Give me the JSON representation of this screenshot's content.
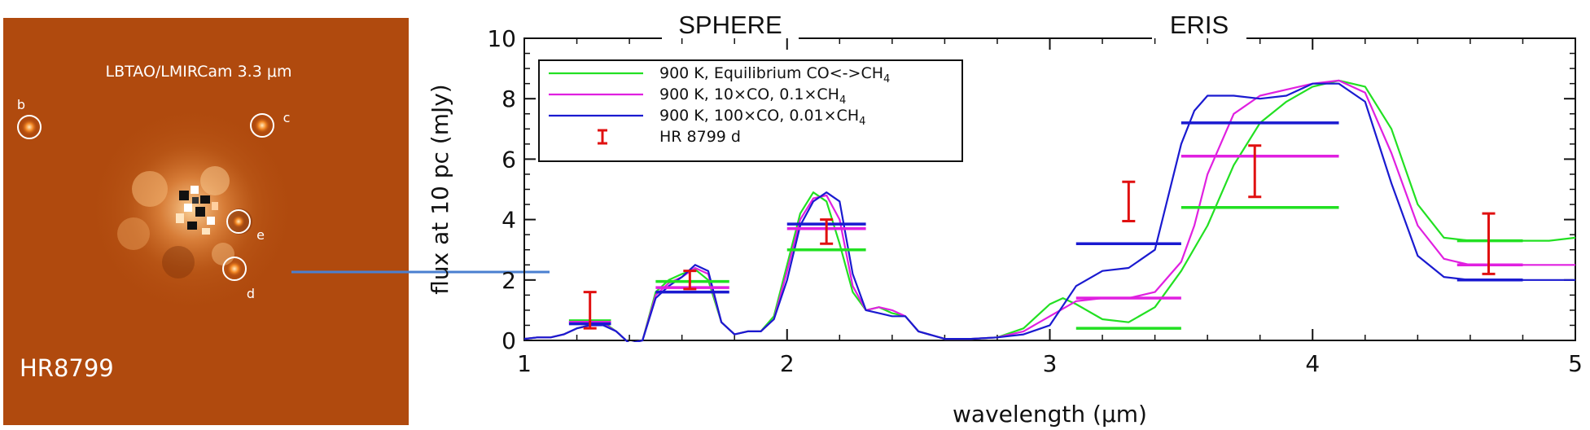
{
  "image_panel": {
    "instrument_label": "LBTAO/LMIRCam 3.3 μm",
    "target_label": "HR8799",
    "planets": [
      {
        "label": "b"
      },
      {
        "label": "c"
      },
      {
        "label": "e"
      },
      {
        "label": "d"
      }
    ],
    "background_color": "#b04a0e",
    "planet_color": "#f07a1a",
    "connector_color": "#4a7fd0"
  },
  "chart_data": {
    "type": "line",
    "band_labels": [
      "SPHERE",
      "ERIS"
    ],
    "xlabel": "wavelength (μm)",
    "ylabel": "flux at 10 pc (mJy)",
    "xlim": [
      1,
      5
    ],
    "ylim": [
      0,
      10
    ],
    "xticks": [
      "1",
      "2",
      "3",
      "4",
      "5"
    ],
    "yticks": [
      "0",
      "2",
      "4",
      "6",
      "8",
      "10"
    ],
    "series": [
      {
        "name_main": "900 K, Equilibrium CO<->CH",
        "name_sub": "4",
        "color": "#22e022",
        "x": [
          1.0,
          1.05,
          1.1,
          1.15,
          1.2,
          1.25,
          1.3,
          1.35,
          1.4,
          1.45,
          1.5,
          1.55,
          1.6,
          1.65,
          1.7,
          1.75,
          1.8,
          1.85,
          1.9,
          1.95,
          2.0,
          2.05,
          2.1,
          2.15,
          2.2,
          2.25,
          2.3,
          2.35,
          2.4,
          2.45,
          2.5,
          2.6,
          2.7,
          2.8,
          2.9,
          3.0,
          3.05,
          3.1,
          3.2,
          3.3,
          3.4,
          3.5,
          3.6,
          3.7,
          3.8,
          3.9,
          4.0,
          4.1,
          4.2,
          4.3,
          4.4,
          4.5,
          4.6,
          4.7,
          4.8,
          4.9,
          5.0
        ],
        "y": [
          0.05,
          0.1,
          0.1,
          0.2,
          0.4,
          0.5,
          0.6,
          0.3,
          -0.1,
          0.0,
          1.6,
          2.0,
          2.2,
          2.35,
          2.0,
          0.6,
          0.2,
          0.3,
          0.3,
          0.8,
          2.5,
          4.2,
          4.9,
          4.6,
          3.2,
          1.6,
          1.0,
          1.1,
          0.9,
          0.8,
          0.3,
          0.05,
          0.05,
          0.1,
          0.4,
          1.2,
          1.4,
          1.2,
          0.7,
          0.6,
          1.1,
          2.3,
          3.8,
          5.8,
          7.2,
          7.9,
          8.4,
          8.6,
          8.4,
          7.0,
          4.5,
          3.4,
          3.3,
          3.3,
          3.3,
          3.3,
          3.4
        ]
      },
      {
        "name_main": "900 K, 10×CO, 0.1×CH",
        "name_sub": "4",
        "color": "#e020e0",
        "x": [
          1.0,
          1.05,
          1.1,
          1.15,
          1.2,
          1.25,
          1.3,
          1.35,
          1.4,
          1.45,
          1.5,
          1.55,
          1.6,
          1.65,
          1.7,
          1.75,
          1.8,
          1.85,
          1.9,
          1.95,
          2.0,
          2.05,
          2.1,
          2.15,
          2.2,
          2.25,
          2.3,
          2.35,
          2.4,
          2.45,
          2.5,
          2.6,
          2.7,
          2.8,
          2.9,
          3.0,
          3.1,
          3.2,
          3.3,
          3.4,
          3.5,
          3.55,
          3.6,
          3.7,
          3.8,
          3.9,
          4.0,
          4.1,
          4.2,
          4.3,
          4.4,
          4.5,
          4.6,
          4.7,
          4.8,
          4.9,
          5.0
        ],
        "y": [
          0.05,
          0.1,
          0.1,
          0.2,
          0.4,
          0.5,
          0.55,
          0.3,
          -0.1,
          0.0,
          1.5,
          1.9,
          2.1,
          2.4,
          2.2,
          0.6,
          0.2,
          0.3,
          0.3,
          0.7,
          2.3,
          4.0,
          4.7,
          4.8,
          4.0,
          1.8,
          1.0,
          1.1,
          1.0,
          0.8,
          0.3,
          0.05,
          0.05,
          0.1,
          0.3,
          0.8,
          1.3,
          1.4,
          1.4,
          1.6,
          2.6,
          3.8,
          5.5,
          7.5,
          8.1,
          8.3,
          8.5,
          8.6,
          8.2,
          6.2,
          3.8,
          2.7,
          2.5,
          2.5,
          2.5,
          2.5,
          2.5
        ]
      },
      {
        "name_main": "900 K, 100×CO, 0.01×CH",
        "name_sub": "4",
        "color": "#1a1ad0",
        "x": [
          1.0,
          1.05,
          1.1,
          1.15,
          1.2,
          1.25,
          1.3,
          1.35,
          1.4,
          1.45,
          1.5,
          1.55,
          1.6,
          1.65,
          1.7,
          1.75,
          1.8,
          1.85,
          1.9,
          1.95,
          2.0,
          2.05,
          2.1,
          2.15,
          2.2,
          2.25,
          2.3,
          2.35,
          2.4,
          2.45,
          2.5,
          2.6,
          2.7,
          2.8,
          2.9,
          3.0,
          3.1,
          3.2,
          3.3,
          3.4,
          3.5,
          3.55,
          3.6,
          3.7,
          3.8,
          3.9,
          4.0,
          4.1,
          4.2,
          4.3,
          4.4,
          4.5,
          4.6,
          4.7,
          4.8,
          4.9,
          5.0
        ],
        "y": [
          0.05,
          0.1,
          0.1,
          0.2,
          0.4,
          0.5,
          0.5,
          0.3,
          -0.1,
          0.0,
          1.4,
          1.8,
          2.1,
          2.5,
          2.3,
          0.6,
          0.2,
          0.3,
          0.3,
          0.7,
          2.0,
          3.8,
          4.6,
          4.9,
          4.6,
          2.2,
          1.0,
          0.9,
          0.8,
          0.8,
          0.3,
          0.05,
          0.05,
          0.1,
          0.2,
          0.5,
          1.8,
          2.3,
          2.4,
          3.0,
          6.5,
          7.6,
          8.1,
          8.1,
          8.0,
          8.1,
          8.5,
          8.5,
          7.9,
          5.2,
          2.8,
          2.1,
          2.0,
          2.0,
          2.0,
          2.0,
          2.0
        ]
      }
    ],
    "band_averages": [
      {
        "series": 0,
        "bands": [
          {
            "x": [
              1.17,
              1.33
            ],
            "y": 0.65
          },
          {
            "x": [
              1.5,
              1.78
            ],
            "y": 1.95
          },
          {
            "x": [
              2.0,
              2.3
            ],
            "y": 3.0
          },
          {
            "x": [
              3.1,
              3.5
            ],
            "y": 0.4
          },
          {
            "x": [
              3.5,
              4.1
            ],
            "y": 4.4
          },
          {
            "x": [
              4.55,
              4.8
            ],
            "y": 3.3
          }
        ]
      },
      {
        "series": 1,
        "bands": [
          {
            "x": [
              1.17,
              1.33
            ],
            "y": 0.6
          },
          {
            "x": [
              1.5,
              1.78
            ],
            "y": 1.75
          },
          {
            "x": [
              2.0,
              2.3
            ],
            "y": 3.7
          },
          {
            "x": [
              3.1,
              3.5
            ],
            "y": 1.4
          },
          {
            "x": [
              3.5,
              4.1
            ],
            "y": 6.1
          },
          {
            "x": [
              4.55,
              4.8
            ],
            "y": 2.5
          }
        ]
      },
      {
        "series": 2,
        "bands": [
          {
            "x": [
              1.17,
              1.33
            ],
            "y": 0.55
          },
          {
            "x": [
              1.5,
              1.78
            ],
            "y": 1.6
          },
          {
            "x": [
              2.0,
              2.3
            ],
            "y": 3.85
          },
          {
            "x": [
              3.1,
              3.5
            ],
            "y": 3.2
          },
          {
            "x": [
              3.5,
              4.1
            ],
            "y": 7.2
          },
          {
            "x": [
              4.55,
              4.8
            ],
            "y": 2.0
          }
        ]
      }
    ],
    "observations": {
      "name": "HR 8799 d",
      "color": "#e01010",
      "points": [
        {
          "x": 1.25,
          "y": 1.0,
          "yerr": 0.6
        },
        {
          "x": 1.63,
          "y": 2.0,
          "yerr": 0.3
        },
        {
          "x": 2.15,
          "y": 3.6,
          "yerr": 0.4
        },
        {
          "x": 3.3,
          "y": 4.6,
          "yerr": 0.65
        },
        {
          "x": 3.78,
          "y": 5.6,
          "yerr": 0.85
        },
        {
          "x": 4.67,
          "y": 3.2,
          "yerr": 1.0
        }
      ]
    }
  }
}
